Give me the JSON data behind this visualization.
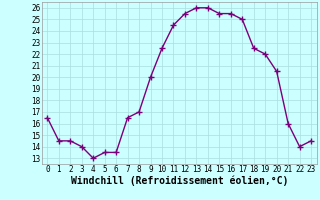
{
  "x": [
    0,
    1,
    2,
    3,
    4,
    5,
    6,
    7,
    8,
    9,
    10,
    11,
    12,
    13,
    14,
    15,
    16,
    17,
    18,
    19,
    20,
    21,
    22,
    23
  ],
  "y": [
    16.5,
    14.5,
    14.5,
    14.0,
    13.0,
    13.5,
    13.5,
    16.5,
    17.0,
    20.0,
    22.5,
    24.5,
    25.5,
    26.0,
    26.0,
    25.5,
    25.5,
    25.0,
    22.5,
    22.0,
    20.5,
    16.0,
    14.0,
    14.5
  ],
  "line_color": "#7b007b",
  "marker": "+",
  "marker_size": 4,
  "bg_color": "#ccffff",
  "grid_color": "#aadddd",
  "xlabel": "Windchill (Refroidissement éolien,°C)",
  "xlabel_fontsize": 7,
  "xlim": [
    -0.5,
    23.5
  ],
  "ylim": [
    12.5,
    26.5
  ],
  "yticks": [
    13,
    14,
    15,
    16,
    17,
    18,
    19,
    20,
    21,
    22,
    23,
    24,
    25,
    26
  ],
  "xticks": [
    0,
    1,
    2,
    3,
    4,
    5,
    6,
    7,
    8,
    9,
    10,
    11,
    12,
    13,
    14,
    15,
    16,
    17,
    18,
    19,
    20,
    21,
    22,
    23
  ],
  "tick_fontsize": 5.5,
  "line_width": 1.0
}
